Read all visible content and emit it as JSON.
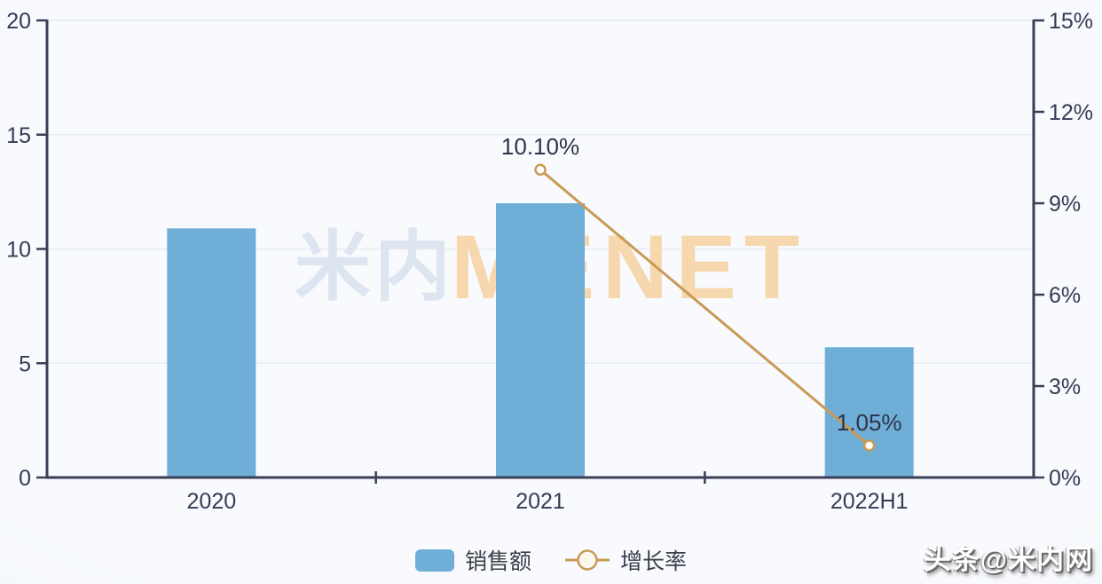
{
  "chart_data": {
    "type": "bar",
    "title": "",
    "categories": [
      "2020",
      "2021",
      "2022H1"
    ],
    "series": [
      {
        "name": "销售额",
        "type": "bar",
        "axis": "left",
        "color": "#6fafd7",
        "values": [
          10.9,
          12.0,
          5.7
        ]
      },
      {
        "name": "增长率",
        "type": "line",
        "axis": "right",
        "color": "#c99a55",
        "marker_fill": "#ffffff",
        "values": [
          null,
          10.1,
          1.05
        ],
        "point_labels": [
          "",
          "10.10%",
          "1.05%"
        ]
      }
    ],
    "left_axis": {
      "min": 0,
      "max": 20,
      "ticks": [
        "0",
        "5",
        "10",
        "15",
        "20"
      ]
    },
    "right_axis": {
      "min": 0,
      "max": 15,
      "ticks": [
        "0%",
        "3%",
        "6%",
        "9%",
        "12%",
        "15%"
      ]
    },
    "legend": [
      {
        "label": "销售额",
        "marker": "bar-swatch",
        "color": "#6fafd7"
      },
      {
        "label": "增长率",
        "marker": "line-circle",
        "color": "#c99a55",
        "circle_fill": "#fdf8ee"
      }
    ],
    "grid": "on",
    "legend_position": "bottom"
  },
  "watermark": {
    "cn": "米内",
    "en": "MENET"
  },
  "credit": {
    "text": "头条@米内网"
  },
  "colors": {
    "bar": "#6fafd7",
    "line": "#c99a55",
    "axis": "#3a3f58",
    "grid": "#e8ebf3",
    "tick_text": "#363b54",
    "label_text": "#303349",
    "watermark_cn": "#dce5f0",
    "watermark_en": "#f6d7ae",
    "background": "#f4f6fa"
  }
}
